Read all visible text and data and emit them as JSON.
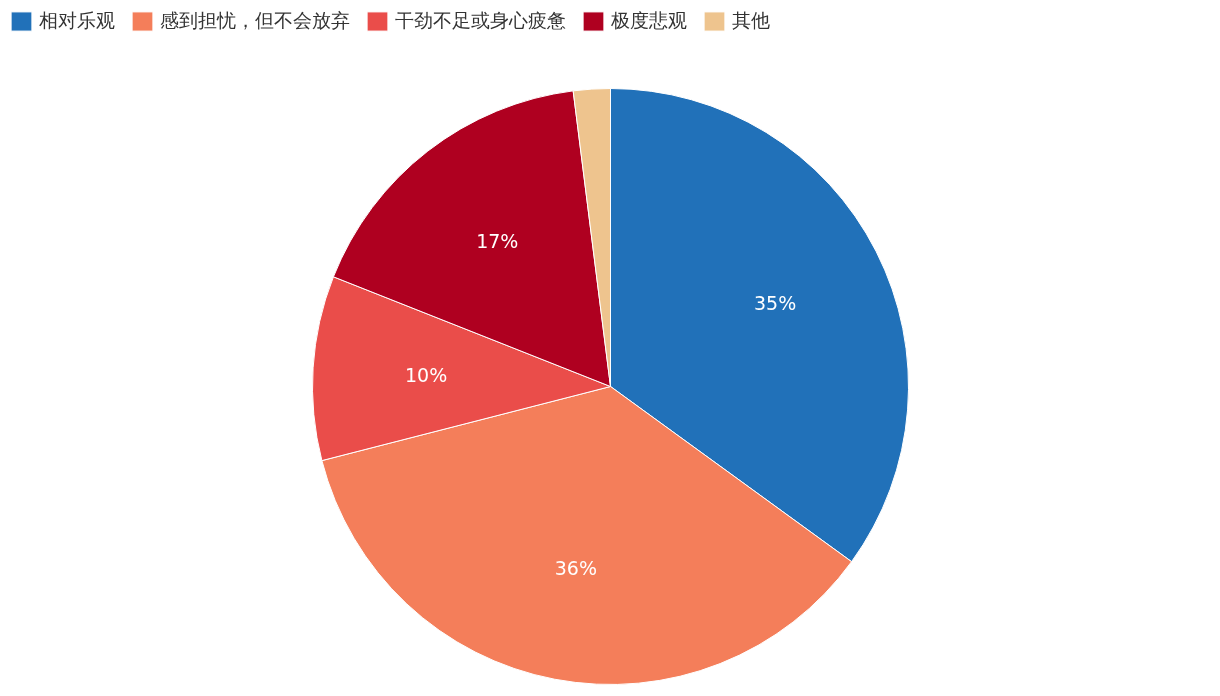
{
  "chart_data": {
    "type": "pie",
    "categories": [
      "相对乐观",
      "感到担忧，但不会放弃",
      "干劲不足或身心疲惫",
      "极度悲观",
      "其他"
    ],
    "values": [
      35,
      36,
      10,
      17,
      2
    ],
    "colors": [
      "#2171b9",
      "#f47e5a",
      "#ea4d4a",
      "#af0020",
      "#eec48e"
    ],
    "value_labels": [
      "35%",
      "36%",
      "10%",
      "17%",
      null
    ],
    "legend": "top left"
  }
}
